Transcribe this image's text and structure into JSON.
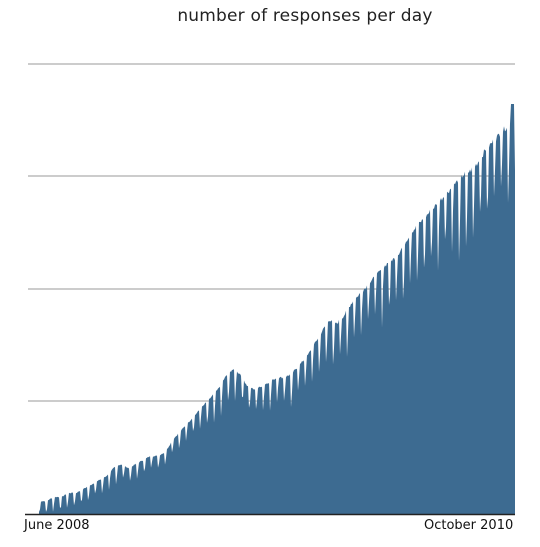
{
  "chart_data": {
    "type": "area",
    "title": "number of responses per day",
    "xlabel": "",
    "ylabel": "",
    "x_tick_labels": [
      "June 2008",
      "October 2010"
    ],
    "x_range": [
      "2008-06",
      "2010-10"
    ],
    "grid": "horizontal",
    "fill_color": "#3d6b91",
    "grid_color": "#999999",
    "ylim": [
      0,
      100
    ],
    "values_note_units": "relative (no y tick labels printed)",
    "series": [
      {
        "values": [
          3,
          3,
          4,
          4,
          5,
          5,
          6,
          7,
          8,
          9,
          11,
          12,
          11,
          12,
          13,
          14,
          14,
          15,
          18,
          20,
          22,
          24,
          26,
          28,
          30,
          33,
          35,
          34,
          31,
          30,
          31,
          32,
          33,
          33,
          34,
          36,
          38,
          41,
          44,
          47,
          46,
          48,
          51,
          53,
          55,
          57,
          59,
          61,
          62,
          65,
          68,
          70,
          72,
          74,
          76,
          78,
          80,
          82,
          83,
          85,
          88,
          90,
          92,
          94,
          97
        ]
      }
    ],
    "spikes": [
      {
        "at": 0.978,
        "value": 90
      },
      {
        "at": 0.995,
        "value": 100
      }
    ]
  }
}
